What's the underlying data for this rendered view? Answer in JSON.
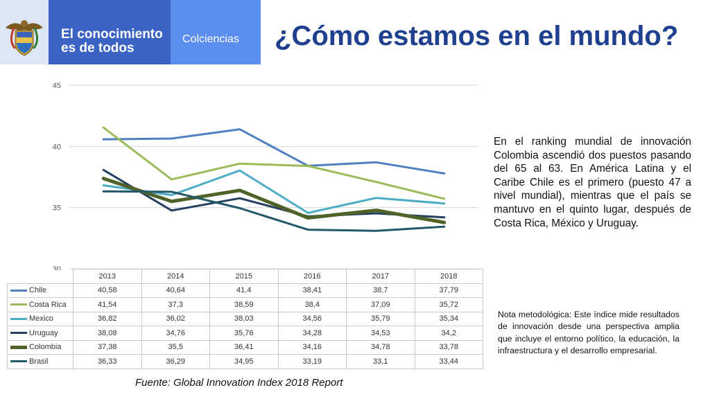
{
  "header": {
    "brand_line1": "El conocimiento",
    "brand_line2": "es de todos",
    "org": "Colciencias"
  },
  "title": "¿Cómo estamos en el mundo?",
  "body_text": "En el ranking mundial de innovación Colombia ascendió dos puestos pasando del 65 al 63. En América Latina y el Caribe Chile es el primero (puesto 47 a nivel mundial), mientras que el país se mantuvo en el quinto lugar, después de Costa Rica, México y Uruguay.",
  "note_label": "Nota metodológica:",
  "note_text": "Este índice mide resultados de innovación desde una perspectiva amplia que incluye el entorno político, la educación, la infraestructura y el desarrollo empresarial.",
  "source": "Fuente: Global Innovation Index 2018 Report",
  "chart_data": {
    "type": "line",
    "categories": [
      "2013",
      "2014",
      "2015",
      "2016",
      "2017",
      "2018"
    ],
    "ylim": [
      30,
      45
    ],
    "yticks": [
      30,
      35,
      40,
      45
    ],
    "grid": true,
    "legend": "data-table",
    "series": [
      {
        "name": "Chile",
        "color": "#4f7fc0",
        "values": [
          40.58,
          40.64,
          41.4,
          38.41,
          38.7,
          37.79
        ],
        "labels": [
          "40,58",
          "40,64",
          "41,4",
          "38,41",
          "38,7",
          "37,79"
        ],
        "bold": false
      },
      {
        "name": "Costa Rica",
        "color": "#9bbb59",
        "values": [
          41.54,
          37.3,
          38.59,
          38.4,
          37.09,
          35.72
        ],
        "labels": [
          "41,54",
          "37,3",
          "38,59",
          "38,4",
          "37,09",
          "35,72"
        ],
        "bold": false
      },
      {
        "name": "Mexico",
        "color": "#4bacc6",
        "values": [
          36.82,
          36.02,
          38.03,
          34.56,
          35.79,
          35.34
        ],
        "labels": [
          "36,82",
          "36,02",
          "38,03",
          "34,56",
          "35,79",
          "35,34"
        ],
        "bold": false
      },
      {
        "name": "Uruguay",
        "color": "#243f60",
        "values": [
          38.08,
          34.76,
          35.76,
          34.28,
          34.53,
          34.2
        ],
        "labels": [
          "38,08",
          "34,76",
          "35,76",
          "34,28",
          "34,53",
          "34,2"
        ],
        "bold": false
      },
      {
        "name": "Colombia",
        "color": "#4f6228",
        "values": [
          37.38,
          35.5,
          36.41,
          34.16,
          34.78,
          33.78
        ],
        "labels": [
          "37,38",
          "35,5",
          "36,41",
          "34,16",
          "34,78",
          "33,78"
        ],
        "bold": true
      },
      {
        "name": "Brasil",
        "color": "#215968",
        "values": [
          36.33,
          36.29,
          34.95,
          33.19,
          33.1,
          33.44
        ],
        "labels": [
          "36,33",
          "36,29",
          "34,95",
          "33,19",
          "33,1",
          "33,44"
        ],
        "bold": false
      }
    ]
  }
}
